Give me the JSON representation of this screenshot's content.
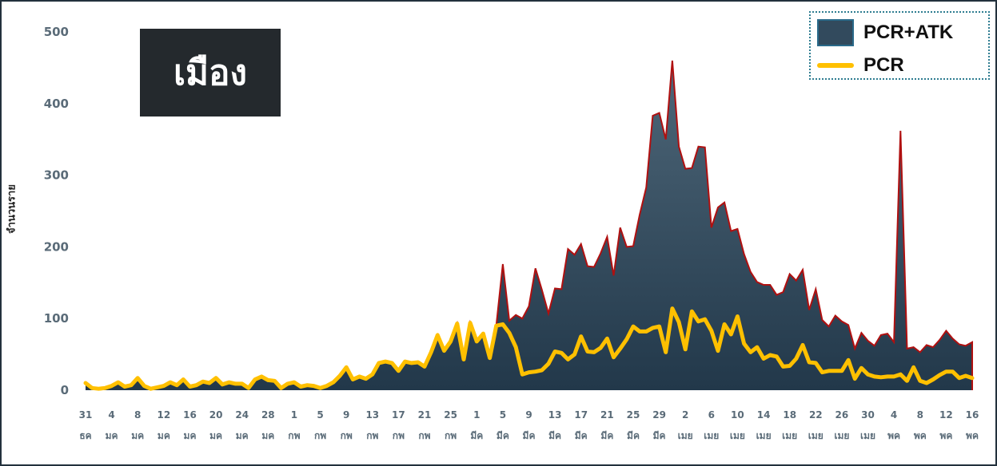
{
  "title": "เมือง",
  "y_axis_label": "จำนวนราย",
  "legend": {
    "area_label": "PCR+ATK",
    "line_label": "PCR"
  },
  "colors": {
    "area_fill": "#324a5d",
    "area_edge": "#b01010",
    "line": "#ffc000",
    "axis_text": "#5a6b78"
  },
  "chart_data": {
    "type": "area",
    "ylim": [
      0,
      500
    ],
    "yticks": [
      0,
      100,
      200,
      300,
      400,
      500
    ],
    "x_tick_labels": [
      {
        "day": "31",
        "month": "ธค"
      },
      {
        "day": "4",
        "month": "มค"
      },
      {
        "day": "8",
        "month": "มค"
      },
      {
        "day": "12",
        "month": "มค"
      },
      {
        "day": "16",
        "month": "มค"
      },
      {
        "day": "20",
        "month": "มค"
      },
      {
        "day": "24",
        "month": "มค"
      },
      {
        "day": "28",
        "month": "มค"
      },
      {
        "day": "1",
        "month": "กพ"
      },
      {
        "day": "5",
        "month": "กพ"
      },
      {
        "day": "9",
        "month": "กพ"
      },
      {
        "day": "13",
        "month": "กพ"
      },
      {
        "day": "17",
        "month": "กพ"
      },
      {
        "day": "21",
        "month": "กพ"
      },
      {
        "day": "25",
        "month": "กพ"
      },
      {
        "day": "1",
        "month": "มีค"
      },
      {
        "day": "5",
        "month": "มีค"
      },
      {
        "day": "9",
        "month": "มีค"
      },
      {
        "day": "13",
        "month": "มีค"
      },
      {
        "day": "17",
        "month": "มีค"
      },
      {
        "day": "21",
        "month": "มีค"
      },
      {
        "day": "25",
        "month": "มีค"
      },
      {
        "day": "29",
        "month": "มีค"
      },
      {
        "day": "2",
        "month": "เมย"
      },
      {
        "day": "6",
        "month": "เมย"
      },
      {
        "day": "10",
        "month": "เมย"
      },
      {
        "day": "14",
        "month": "เมย"
      },
      {
        "day": "18",
        "month": "เมย"
      },
      {
        "day": "22",
        "month": "เมย"
      },
      {
        "day": "26",
        "month": "เมย"
      },
      {
        "day": "30",
        "month": "เมย"
      },
      {
        "day": "4",
        "month": "พค"
      },
      {
        "day": "8",
        "month": "พค"
      },
      {
        "day": "12",
        "month": "พค"
      },
      {
        "day": "16",
        "month": "พค"
      }
    ],
    "series": [
      {
        "name": "PCR+ATK",
        "type": "area",
        "values": [
          10,
          3,
          2,
          3,
          6,
          11,
          5,
          7,
          17,
          6,
          2,
          4,
          6,
          11,
          7,
          15,
          5,
          7,
          12,
          10,
          17,
          8,
          11,
          9,
          9,
          3,
          15,
          19,
          14,
          13,
          3,
          9,
          11,
          5,
          7,
          6,
          3,
          6,
          11,
          20,
          32,
          15,
          19,
          16,
          22,
          38,
          40,
          38,
          27,
          40,
          38,
          39,
          33,
          53,
          77,
          55,
          68,
          93,
          43,
          94,
          68,
          79,
          45,
          90,
          176,
          97,
          105,
          100,
          117,
          170,
          140,
          107,
          142,
          141,
          197,
          189,
          204,
          173,
          172,
          191,
          214,
          160,
          227,
          200,
          201,
          245,
          283,
          383,
          387,
          350,
          460,
          340,
          309,
          310,
          340,
          339,
          227,
          255,
          262,
          222,
          225,
          190,
          165,
          151,
          147,
          147,
          133,
          137,
          162,
          153,
          168,
          112,
          141,
          98,
          89,
          104,
          96,
          91,
          58,
          80,
          69,
          62,
          77,
          79,
          67,
          362,
          58,
          60,
          53,
          63,
          60,
          70,
          83,
          72,
          64,
          62,
          67
        ]
      },
      {
        "name": "PCR",
        "type": "line",
        "values": [
          10,
          3,
          2,
          3,
          6,
          11,
          5,
          7,
          17,
          6,
          2,
          4,
          6,
          11,
          7,
          15,
          5,
          7,
          12,
          10,
          17,
          8,
          11,
          9,
          9,
          3,
          15,
          19,
          14,
          13,
          3,
          9,
          11,
          5,
          7,
          6,
          3,
          6,
          11,
          20,
          32,
          15,
          19,
          16,
          22,
          38,
          40,
          38,
          27,
          40,
          38,
          39,
          33,
          53,
          77,
          55,
          68,
          93,
          43,
          94,
          68,
          79,
          45,
          90,
          92,
          80,
          60,
          22,
          25,
          26,
          28,
          37,
          54,
          52,
          43,
          50,
          75,
          54,
          53,
          59,
          72,
          46,
          58,
          71,
          89,
          82,
          82,
          87,
          89,
          53,
          114,
          95,
          57,
          110,
          96,
          99,
          83,
          55,
          92,
          78,
          103,
          65,
          53,
          60,
          44,
          49,
          47,
          33,
          34,
          44,
          63,
          39,
          38,
          25,
          27,
          27,
          27,
          42,
          16,
          31,
          22,
          19,
          18,
          19,
          19,
          22,
          13,
          32,
          13,
          10,
          15,
          21,
          26,
          26,
          17,
          20,
          17
        ]
      }
    ]
  }
}
